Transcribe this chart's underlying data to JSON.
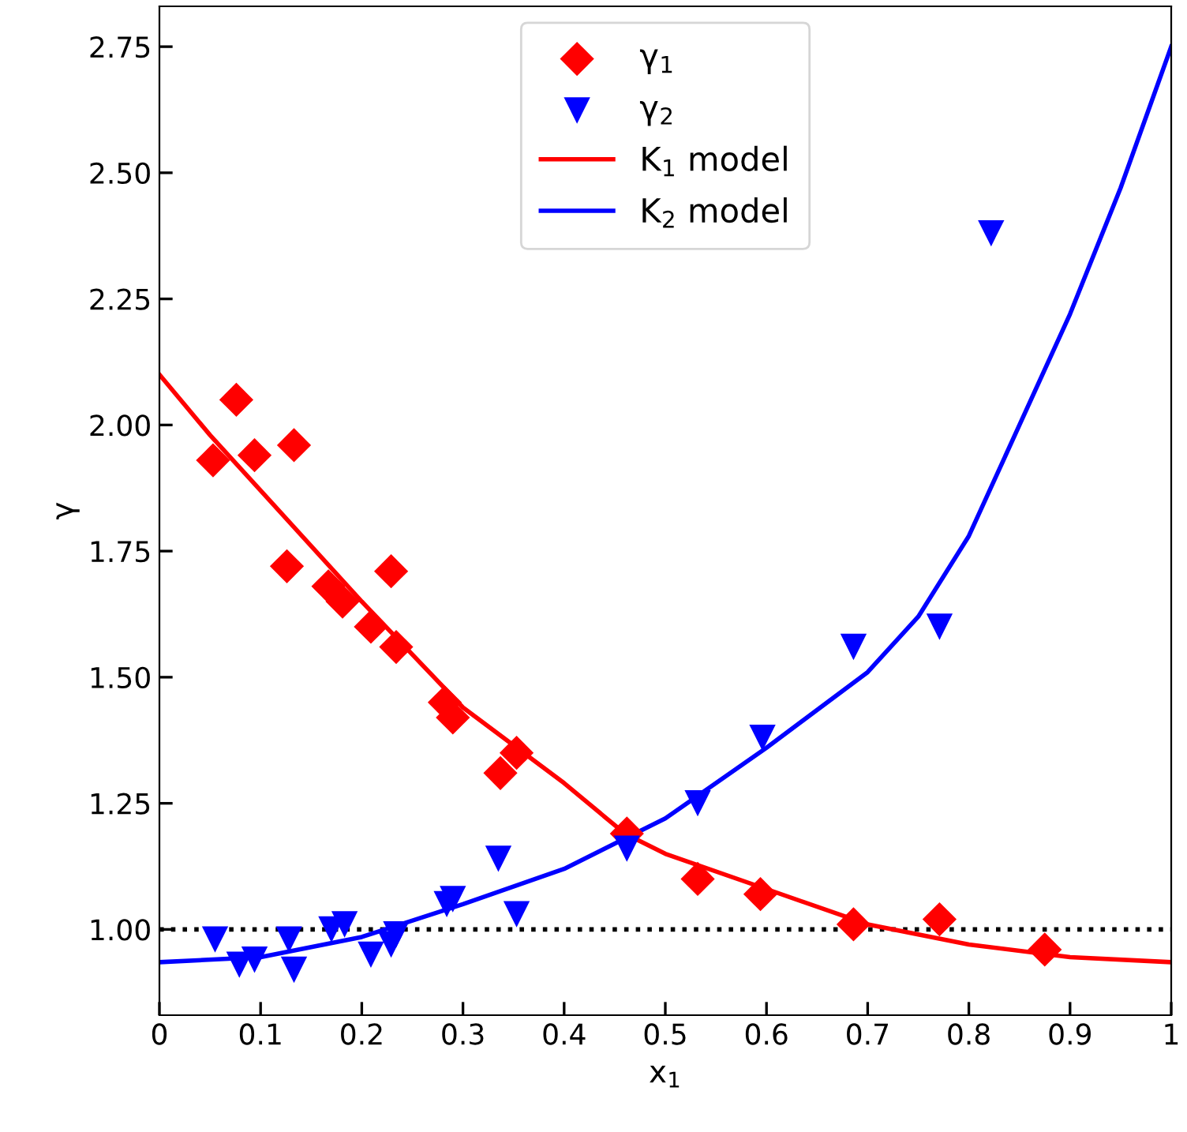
{
  "chart_data": {
    "type": "scatter",
    "xlabel": "x$_{1}$",
    "ylabel": "γ",
    "xlim": [
      0,
      1
    ],
    "ylim": [
      0.83,
      2.83
    ],
    "xticks": [
      0,
      {
        "value": 0.1,
        "label": "0.1"
      },
      {
        "value": 0.2,
        "label": "0.2"
      },
      {
        "value": 0.3,
        "label": "0.3"
      },
      {
        "value": 0.4,
        "label": "0.4"
      },
      {
        "value": 0.5,
        "label": "0.5"
      },
      {
        "value": 0.6,
        "label": "0.6"
      },
      {
        "value": 0.7,
        "label": "0.7"
      },
      {
        "value": 0.8,
        "label": "0.8"
      },
      {
        "value": 0.9,
        "label": "0.9"
      },
      1
    ],
    "yticks": [
      {
        "value": 1,
        "label": "1.00"
      },
      {
        "value": 1.25,
        "label": "1.25"
      },
      {
        "value": 1.5,
        "label": "1.50"
      },
      {
        "value": 1.75,
        "label": "1.75"
      },
      {
        "value": 2,
        "label": "2.00"
      },
      {
        "value": 2.25,
        "label": "2.25"
      },
      {
        "value": 2.5,
        "label": "2.50"
      },
      {
        "value": 2.75,
        "label": "2.75"
      }
    ],
    "grid": false,
    "legend": "top",
    "ref_lines": [
      {
        "axis": "y",
        "value": 1,
        "color": "#000000",
        "line_style": "dotted"
      }
    ],
    "series": [
      {
        "name": "γ$_{1}$",
        "marker": "diamond",
        "color": "#ff0000",
        "x": [
          0.076,
          0.053,
          0.094,
          0.133,
          0.126,
          0.229,
          0.167,
          0.181,
          0.209,
          0.234,
          0.282,
          0.29,
          0.337,
          0.353,
          0.462,
          0.532,
          0.594,
          0.686,
          0.771,
          0.875
        ],
        "values": [
          2.05,
          1.93,
          1.94,
          1.96,
          1.72,
          1.71,
          1.68,
          1.65,
          1.6,
          1.56,
          1.45,
          1.42,
          1.31,
          1.35,
          1.19,
          1.1,
          1.07,
          1.01,
          1.02,
          0.96
        ]
      },
      {
        "name": "γ$_{2}$",
        "marker": "triangle",
        "color": "#0000ff",
        "x": [
          0.055,
          0.079,
          0.094,
          0.128,
          0.133,
          0.17,
          0.183,
          0.209,
          0.229,
          0.234,
          0.284,
          0.29,
          0.335,
          0.353,
          0.462,
          0.532,
          0.596,
          0.686,
          0.771,
          0.822
        ],
        "values": [
          0.98,
          0.93,
          0.94,
          0.98,
          0.92,
          1.0,
          1.01,
          0.95,
          0.97,
          0.99,
          1.05,
          1.06,
          1.14,
          1.03,
          1.16,
          1.25,
          1.38,
          1.56,
          1.6,
          2.38
        ]
      },
      {
        "name": "K$_{1}$ model",
        "type": "line",
        "line_style": "solid",
        "color": "#ff0000",
        "x": [
          0,
          0.05,
          0.1,
          0.2,
          0.3,
          0.4,
          0.46,
          0.5,
          0.6,
          0.7,
          0.8,
          0.9,
          1.0
        ],
        "values": [
          2.1,
          1.98,
          1.87,
          1.65,
          1.44,
          1.29,
          1.19,
          1.15,
          1.08,
          1.01,
          0.97,
          0.945,
          0.935
        ]
      },
      {
        "name": "K$_{2}$ model",
        "type": "line",
        "line_style": "solid",
        "color": "#0000ff",
        "x": [
          0,
          0.1,
          0.2,
          0.3,
          0.4,
          0.46,
          0.5,
          0.6,
          0.7,
          0.75,
          0.8,
          0.85,
          0.9,
          0.95,
          1.0
        ],
        "values": [
          0.935,
          0.945,
          0.985,
          1.05,
          1.12,
          1.18,
          1.22,
          1.36,
          1.51,
          1.62,
          1.78,
          2.0,
          2.22,
          2.47,
          2.75
        ]
      }
    ]
  }
}
